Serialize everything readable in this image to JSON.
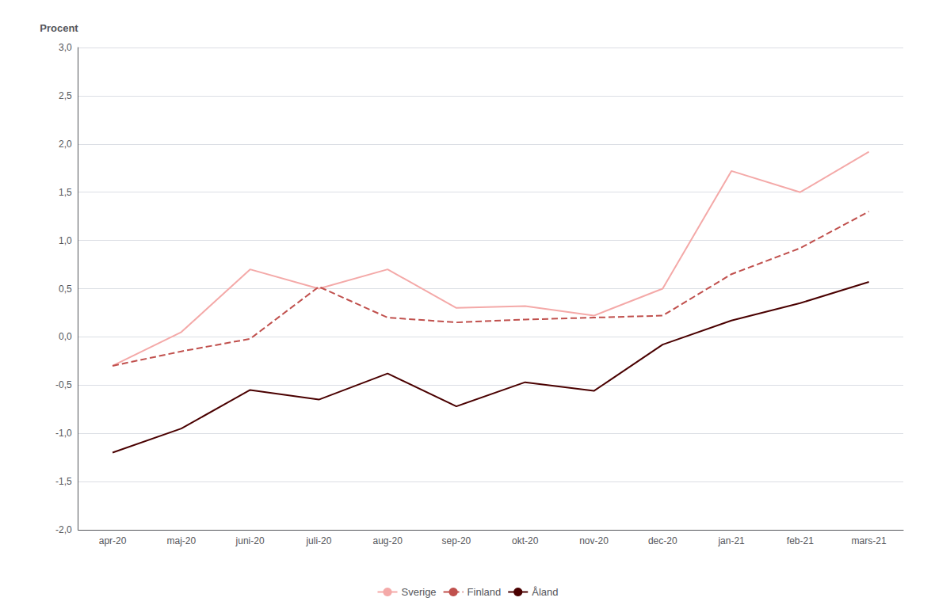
{
  "chart_data": {
    "type": "line",
    "ylabel": "Procent",
    "categories": [
      "apr-20",
      "maj-20",
      "juni-20",
      "juli-20",
      "aug-20",
      "sep-20",
      "okt-20",
      "nov-20",
      "dec-20",
      "jan-21",
      "feb-21",
      "mars-21"
    ],
    "series": [
      {
        "name": "Sverige",
        "color": "#f4a9a8",
        "line_style": "solid",
        "values": [
          -0.3,
          0.05,
          0.7,
          0.5,
          0.7,
          0.3,
          0.32,
          0.22,
          0.5,
          1.72,
          1.5,
          1.92
        ]
      },
      {
        "name": "Finland",
        "color": "#c0504d",
        "line_style": "dashed",
        "values": [
          -0.3,
          -0.15,
          -0.02,
          0.52,
          0.2,
          0.15,
          0.18,
          0.2,
          0.22,
          0.65,
          0.92,
          1.3
        ]
      },
      {
        "name": "Åland",
        "color": "#4a0000",
        "line_style": "solid",
        "values": [
          -1.2,
          -0.95,
          -0.55,
          -0.65,
          -0.38,
          -0.72,
          -0.47,
          -0.56,
          -0.08,
          0.17,
          0.35,
          0.57
        ]
      }
    ],
    "ylim": [
      -2.0,
      3.0
    ],
    "yticks": [
      {
        "value": -2.0,
        "label": "-2,0"
      },
      {
        "value": -1.5,
        "label": "-1,5"
      },
      {
        "value": -1.0,
        "label": "-1,0"
      },
      {
        "value": -0.5,
        "label": "-0,5"
      },
      {
        "value": 0.0,
        "label": "0,0"
      },
      {
        "value": 0.5,
        "label": "0,5"
      },
      {
        "value": 1.0,
        "label": "1,0"
      },
      {
        "value": 1.5,
        "label": "1,5"
      },
      {
        "value": 2.0,
        "label": "2,0"
      },
      {
        "value": 2.5,
        "label": "2,5"
      },
      {
        "value": 3.0,
        "label": "3,0"
      }
    ],
    "grid": true,
    "legend": "bottom"
  }
}
